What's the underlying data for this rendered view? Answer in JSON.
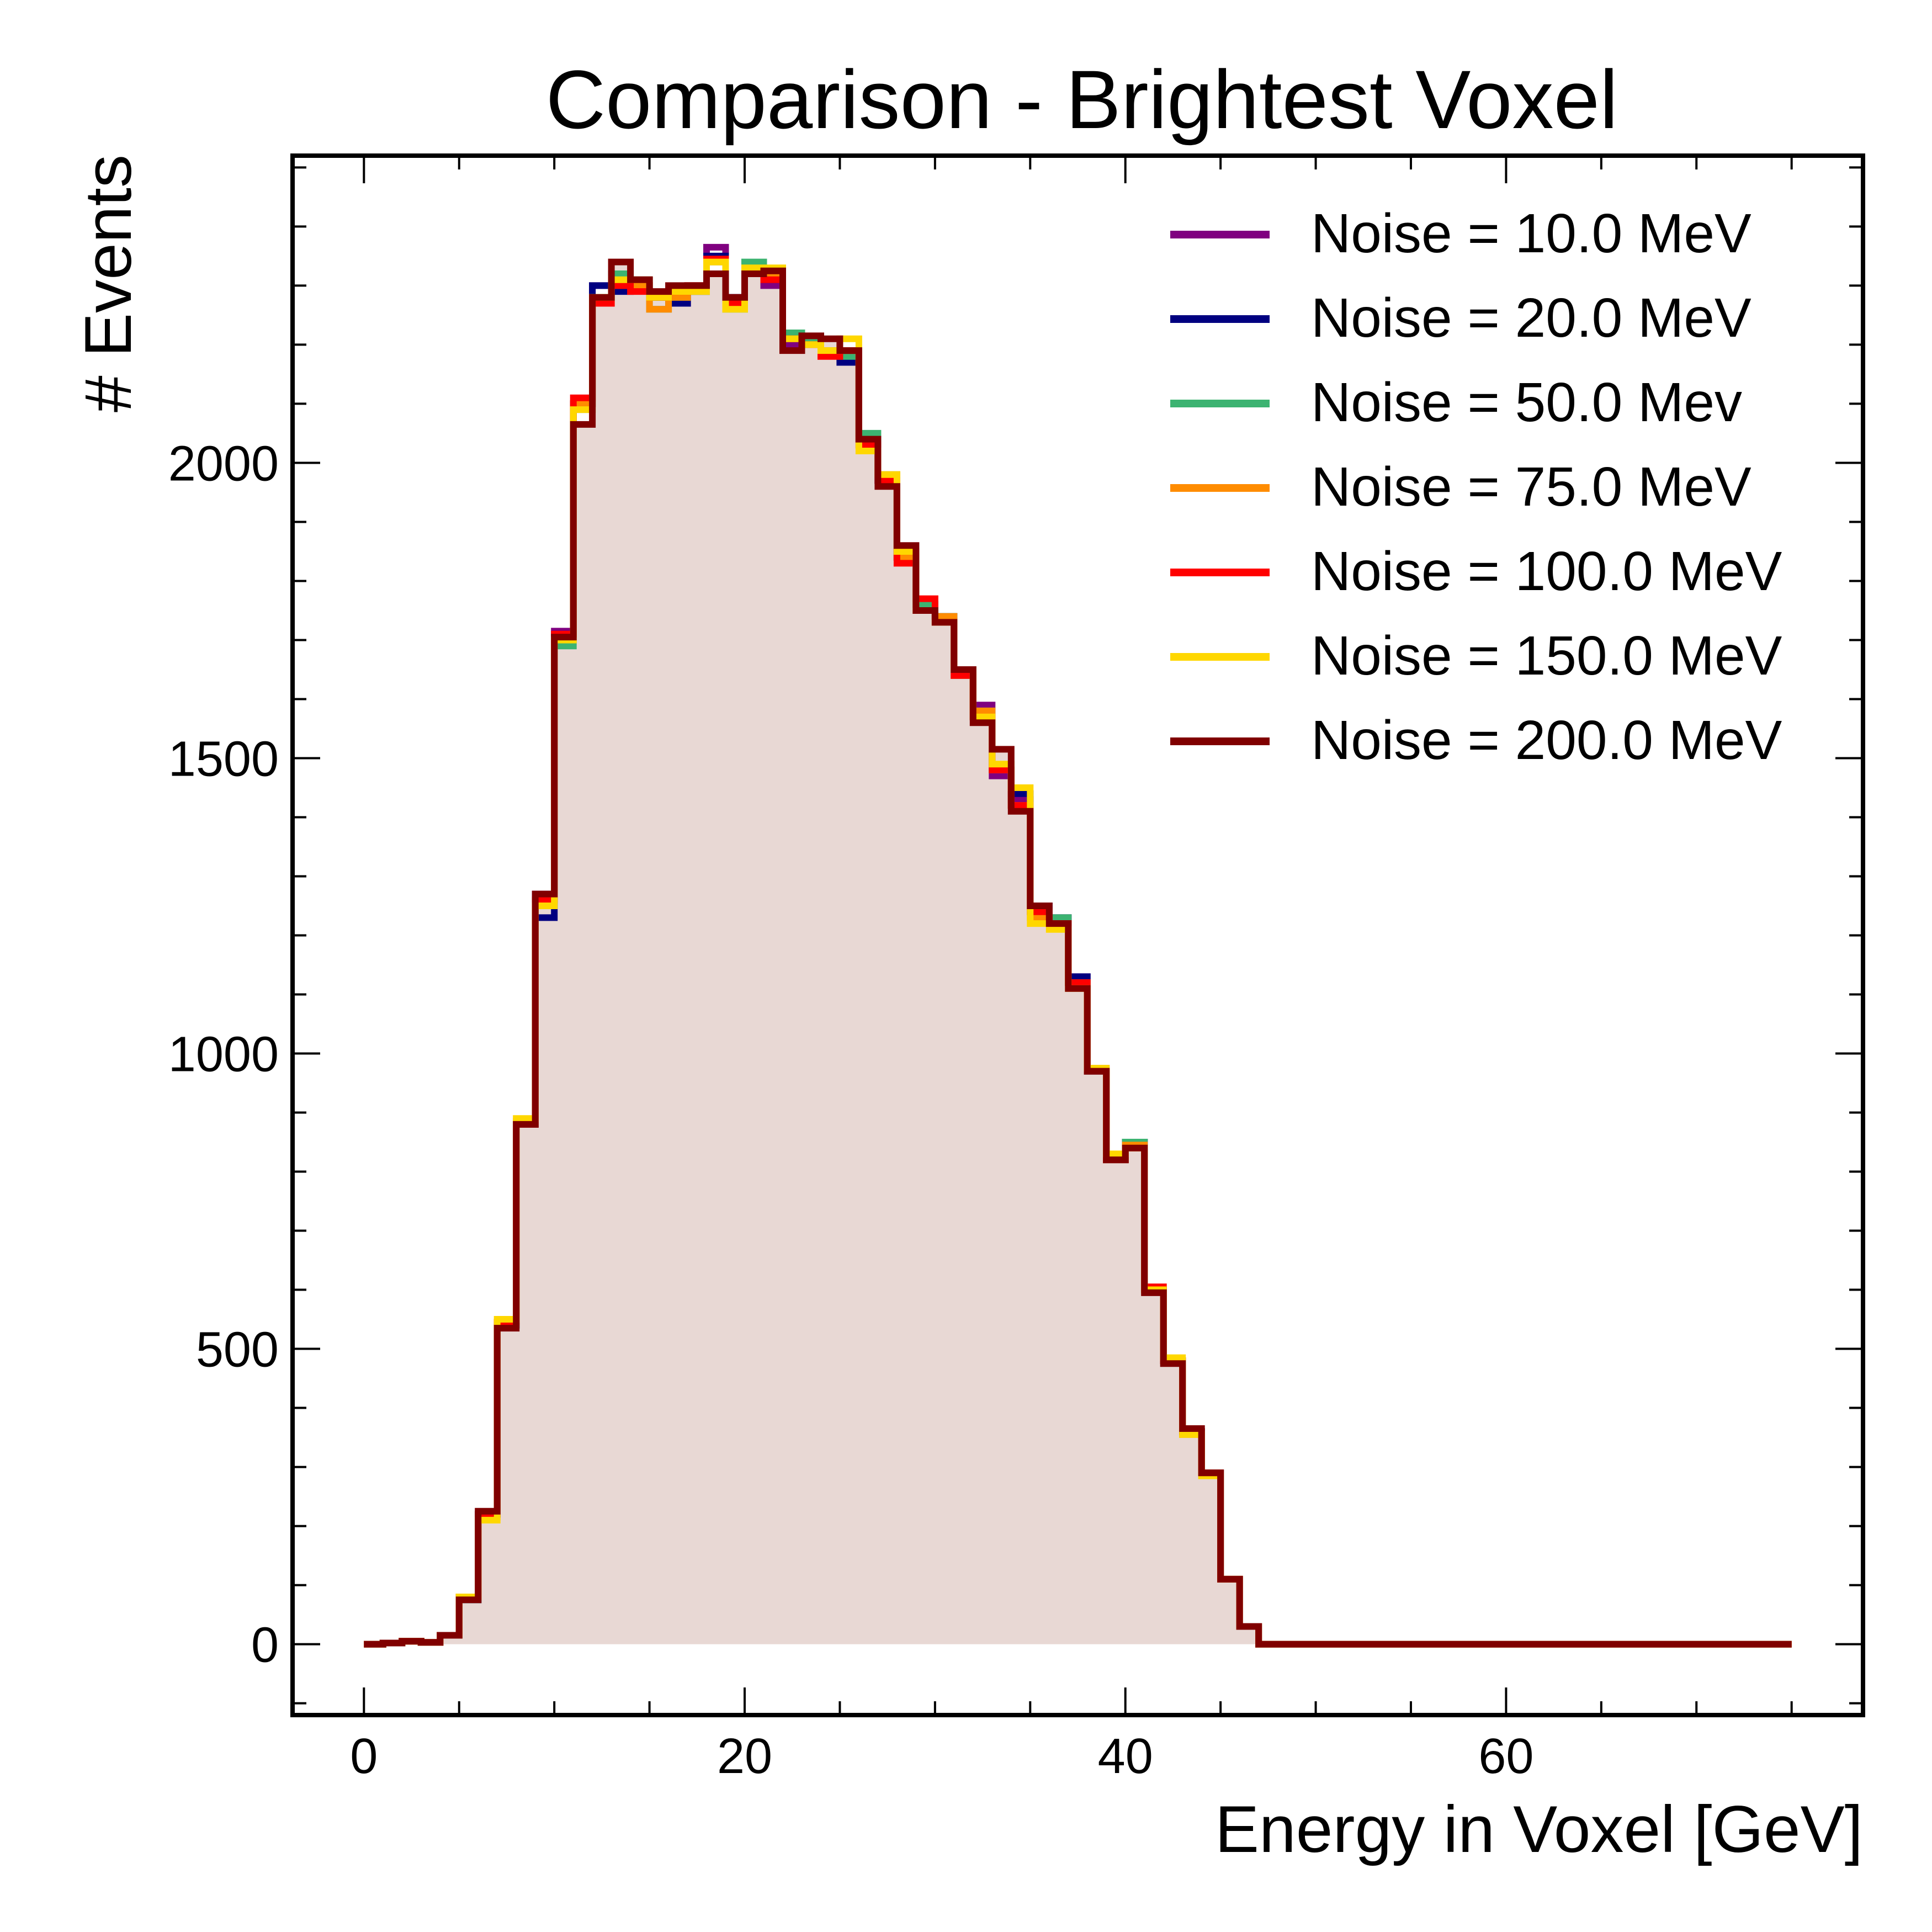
{
  "chart_data": {
    "type": "line",
    "subtype": "step histogram",
    "title": "Comparison - Brightest Voxel",
    "xlabel": "Energy in Voxel [GeV]",
    "ylabel": "# Events",
    "xlim": [
      -3.75,
      78.75
    ],
    "ylim": [
      -120,
      2520
    ],
    "x_ticks": [
      0,
      20,
      40,
      60
    ],
    "y_ticks": [
      0,
      500,
      1000,
      1500,
      2000
    ],
    "grid": false,
    "legend_position": "top-right",
    "fill_color": "#e8d8d4",
    "bin_width": 1.0,
    "x_start": 0,
    "series": [
      {
        "name": "Noise = 10.0 MeV",
        "color": "#800080",
        "values": [
          0,
          2,
          5,
          3,
          15,
          75,
          220,
          540,
          880,
          1270,
          1715,
          2100,
          2300,
          2310,
          2300,
          2280,
          2270,
          2300,
          2365,
          2280,
          2320,
          2300,
          2200,
          2200,
          2190,
          2180,
          2040,
          1970,
          1840,
          1760,
          1740,
          1640,
          1590,
          1470,
          1430,
          1250,
          1230,
          1130,
          970,
          820,
          850,
          600,
          480,
          360,
          290,
          110,
          30,
          0,
          0,
          0,
          0,
          0,
          0,
          0,
          0,
          0,
          0,
          0,
          0,
          0,
          0,
          0,
          0,
          0,
          0,
          0,
          0,
          0,
          0,
          0,
          0,
          0,
          0,
          0,
          0
        ]
      },
      {
        "name": "Noise = 20.0 MeV",
        "color": "#000080",
        "values": [
          0,
          2,
          5,
          3,
          15,
          75,
          220,
          540,
          880,
          1230,
          1710,
          2100,
          2300,
          2290,
          2310,
          2280,
          2270,
          2290,
          2350,
          2280,
          2330,
          2310,
          2210,
          2210,
          2190,
          2170,
          2040,
          1970,
          1840,
          1750,
          1740,
          1650,
          1570,
          1480,
          1440,
          1250,
          1230,
          1130,
          970,
          820,
          850,
          600,
          480,
          360,
          290,
          110,
          30,
          0,
          0,
          0,
          0,
          0,
          0,
          0,
          0,
          0,
          0,
          0,
          0,
          0,
          0,
          0,
          0,
          0,
          0,
          0,
          0,
          0,
          0,
          0,
          0,
          0,
          0,
          0,
          0
        ]
      },
      {
        "name": "Noise = 50.0 Mev",
        "color": "#3cb371",
        "values": [
          0,
          2,
          5,
          3,
          15,
          75,
          220,
          540,
          880,
          1250,
          1690,
          2090,
          2280,
          2320,
          2300,
          2260,
          2280,
          2290,
          2340,
          2260,
          2340,
          2320,
          2220,
          2210,
          2190,
          2180,
          2050,
          1980,
          1840,
          1760,
          1740,
          1640,
          1580,
          1480,
          1420,
          1240,
          1230,
          1120,
          970,
          820,
          850,
          600,
          480,
          360,
          290,
          110,
          30,
          0,
          0,
          0,
          0,
          0,
          0,
          0,
          0,
          0,
          0,
          0,
          0,
          0,
          0,
          0,
          0,
          0,
          0,
          0,
          0,
          0,
          0,
          0,
          0,
          0,
          0,
          0,
          0
        ]
      },
      {
        "name": "Noise = 75.0 MeV",
        "color": "#ff8c00",
        "values": [
          0,
          2,
          5,
          3,
          15,
          80,
          215,
          545,
          885,
          1260,
          1700,
          2100,
          2270,
          2300,
          2300,
          2260,
          2280,
          2300,
          2340,
          2270,
          2320,
          2320,
          2210,
          2200,
          2190,
          2190,
          2030,
          1980,
          1840,
          1750,
          1740,
          1640,
          1580,
          1480,
          1420,
          1230,
          1220,
          1120,
          975,
          820,
          845,
          600,
          480,
          355,
          290,
          110,
          30,
          0,
          0,
          0,
          0,
          0,
          0,
          0,
          0,
          0,
          0,
          0,
          0,
          0,
          0,
          0,
          0,
          0,
          0,
          0,
          0,
          0,
          0,
          0,
          0,
          0,
          0,
          0,
          0
        ]
      },
      {
        "name": "Noise = 100.0 MeV",
        "color": "#ff0000",
        "values": [
          0,
          2,
          5,
          3,
          15,
          80,
          220,
          545,
          880,
          1260,
          1710,
          2110,
          2270,
          2300,
          2290,
          2280,
          2290,
          2300,
          2345,
          2270,
          2320,
          2310,
          2210,
          2200,
          2180,
          2190,
          2030,
          1970,
          1830,
          1770,
          1730,
          1640,
          1570,
          1480,
          1420,
          1240,
          1220,
          1120,
          970,
          820,
          840,
          605,
          480,
          360,
          290,
          110,
          30,
          0,
          0,
          0,
          0,
          0,
          0,
          0,
          0,
          0,
          0,
          0,
          0,
          0,
          0,
          0,
          0,
          0,
          0,
          0,
          0,
          0,
          0,
          0,
          0,
          0,
          0,
          0,
          0
        ]
      },
      {
        "name": "Noise = 150.0 MeV",
        "color": "#ffd700",
        "values": [
          0,
          2,
          5,
          3,
          15,
          80,
          210,
          550,
          890,
          1250,
          1700,
          2090,
          2280,
          2310,
          2310,
          2280,
          2290,
          2290,
          2340,
          2260,
          2330,
          2330,
          2210,
          2200,
          2190,
          2210,
          2020,
          1980,
          1850,
          1750,
          1730,
          1650,
          1570,
          1490,
          1450,
          1220,
          1210,
          1110,
          975,
          830,
          840,
          600,
          485,
          355,
          285,
          110,
          30,
          0,
          0,
          0,
          0,
          0,
          0,
          0,
          0,
          0,
          0,
          0,
          0,
          0,
          0,
          0,
          0,
          0,
          0,
          0,
          0,
          0,
          0,
          0,
          0,
          0,
          0,
          0,
          0
        ]
      },
      {
        "name": "Noise = 200.0 MeV",
        "color": "#800000",
        "values": [
          0,
          2,
          5,
          3,
          15,
          75,
          225,
          535,
          880,
          1270,
          1705,
          2065,
          2280,
          2340,
          2310,
          2290,
          2300,
          2300,
          2320,
          2280,
          2320,
          2325,
          2190,
          2215,
          2210,
          2190,
          2040,
          1960,
          1860,
          1750,
          1730,
          1650,
          1560,
          1515,
          1410,
          1250,
          1220,
          1110,
          970,
          820,
          840,
          595,
          475,
          365,
          290,
          110,
          30,
          0,
          0,
          0,
          0,
          0,
          0,
          0,
          0,
          0,
          0,
          0,
          0,
          0,
          0,
          0,
          0,
          0,
          0,
          0,
          0,
          0,
          0,
          0,
          0,
          0,
          0,
          0,
          0
        ]
      }
    ]
  }
}
